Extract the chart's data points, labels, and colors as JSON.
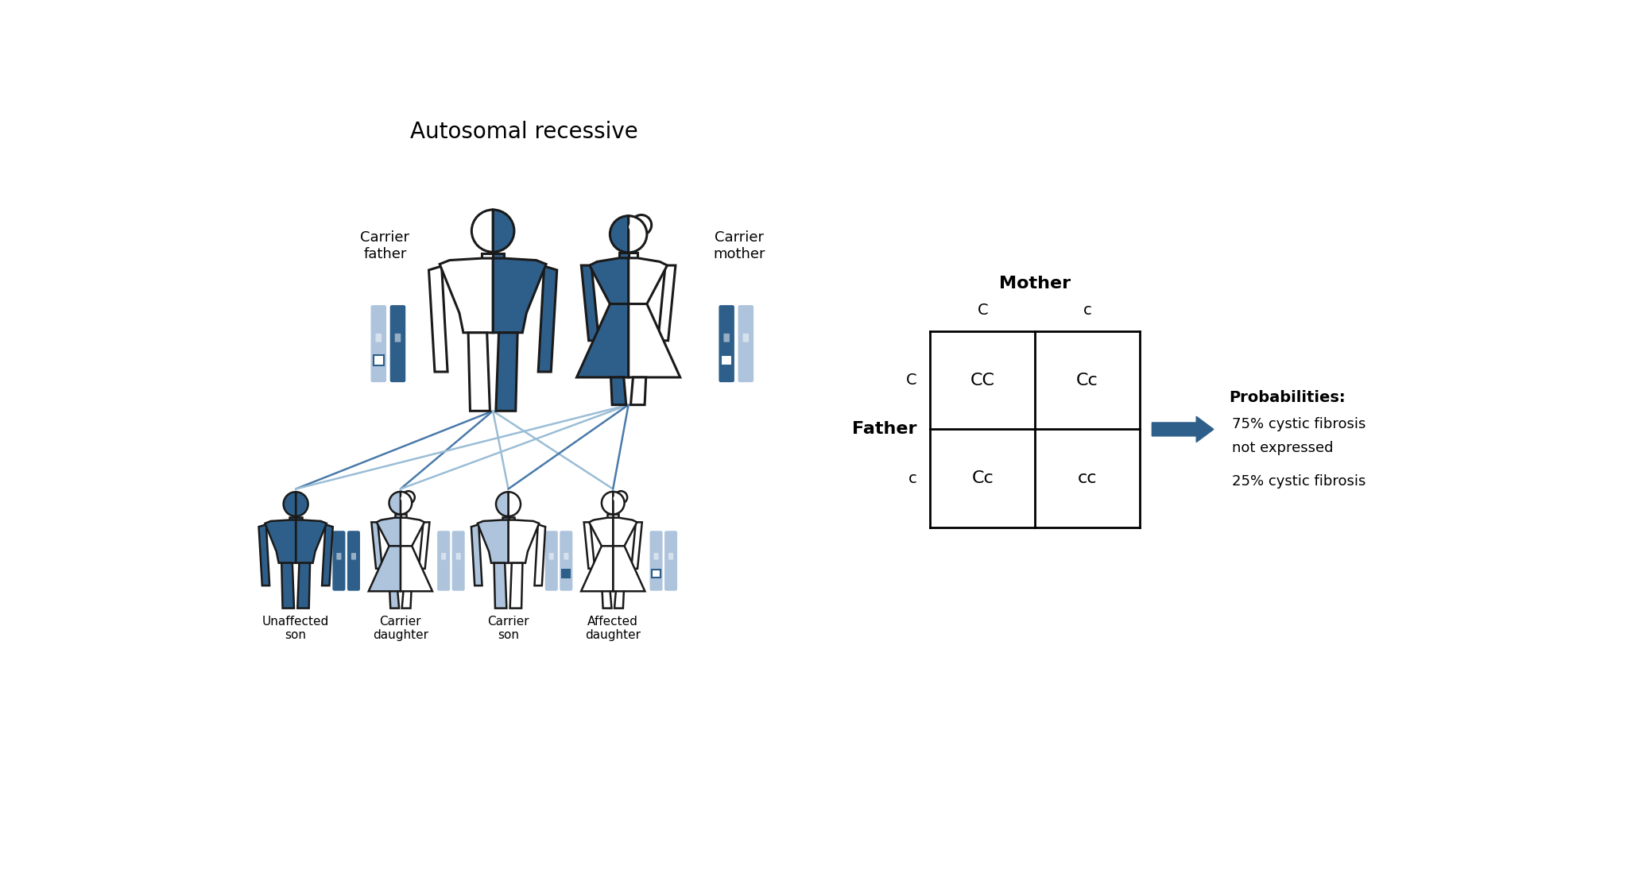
{
  "title": "Autosomal recessive",
  "bg_color": "#ffffff",
  "dark_blue": "#2e5f8a",
  "light_blue": "#8fb0d0",
  "lighter_blue": "#aec4dc",
  "very_light_blue": "#c8d9e8",
  "outline_color": "#1a1a1a",
  "punnett_cells": [
    [
      "CC",
      "Cc"
    ],
    [
      "Cc",
      "cc"
    ]
  ],
  "punnett_col_labels": [
    "C",
    "c"
  ],
  "punnett_row_labels": [
    "C",
    "c"
  ],
  "punnett_col_header": "Mother",
  "punnett_row_header": "Father",
  "probabilities_title": "Probabilities:",
  "prob_line1": "75% cystic fibrosis",
  "prob_line2": "not expressed",
  "prob_line3": "25% cystic fibrosis",
  "parent_labels": [
    "Carrier\nfather",
    "Carrier\nmother"
  ],
  "child_labels": [
    "Unaffected\nson",
    "Carrier\ndaughter",
    "Carrier\nson",
    "Affected\ndaughter"
  ]
}
